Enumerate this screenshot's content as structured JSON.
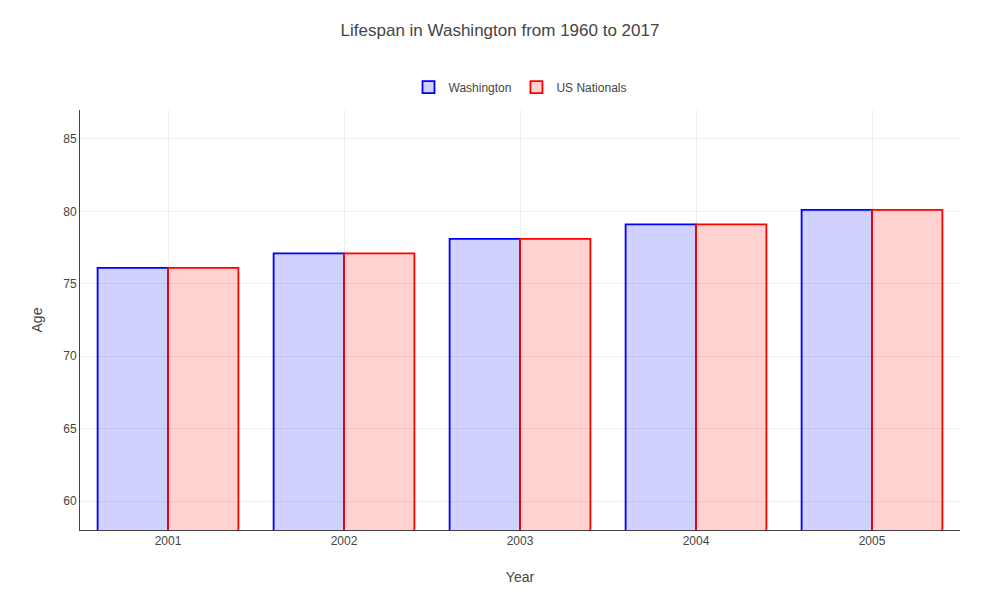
{
  "chart_data": {
    "type": "bar",
    "title": "Lifespan in Washington from 1960 to 2017",
    "xlabel": "Year",
    "ylabel": "Age",
    "categories": [
      "2001",
      "2002",
      "2003",
      "2004",
      "2005"
    ],
    "series": [
      {
        "name": "Washington",
        "color": "#0000ff",
        "values": [
          76.1,
          77.1,
          78.1,
          79.1,
          80.1
        ]
      },
      {
        "name": "US Nationals",
        "color": "#ff0000",
        "values": [
          76.1,
          77.1,
          78.1,
          79.1,
          80.1
        ]
      }
    ],
    "ylim": [
      58,
      87
    ],
    "yticks": [
      60,
      65,
      70,
      75,
      80,
      85
    ],
    "grid": true,
    "legend": "top"
  }
}
